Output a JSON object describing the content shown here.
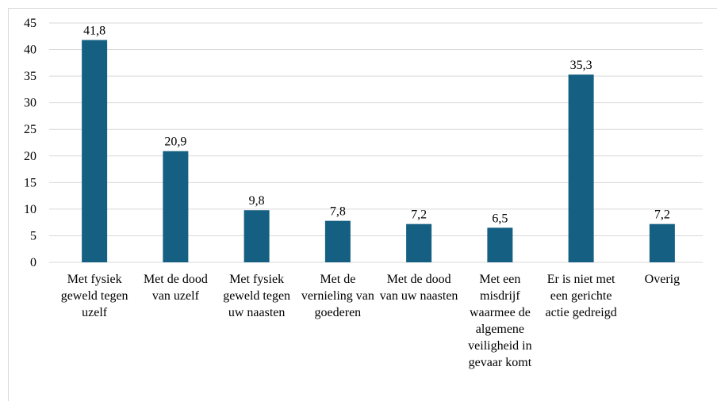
{
  "chart_data": {
    "type": "bar",
    "categories": [
      "Met fysiek geweld tegen uzelf",
      "Met de dood van uzelf",
      "Met fysiek geweld tegen uw naasten",
      "Met de vernieling van goederen",
      "Met de dood van uw naasten",
      "Met een misdrijf waarmee de algemene veiligheid in gevaar komt",
      "Er is niet met een gerichte actie gedreigd",
      "Overig"
    ],
    "values": [
      41.8,
      20.9,
      9.8,
      7.8,
      7.2,
      6.5,
      35.3,
      7.2
    ],
    "value_labels": [
      "41,8",
      "20,9",
      "9,8",
      "7,8",
      "7,2",
      "6,5",
      "35,3",
      "7,2"
    ],
    "color": "#156082",
    "ylim": [
      0,
      45
    ],
    "yticks": [
      0,
      5,
      10,
      15,
      20,
      25,
      30,
      35,
      40,
      45
    ],
    "grid": true
  }
}
